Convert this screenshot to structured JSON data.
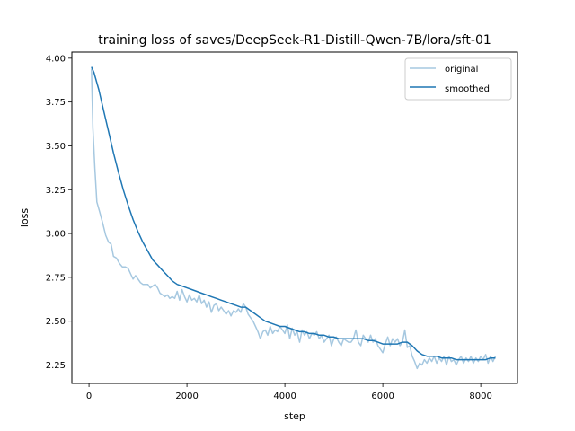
{
  "chart_data": {
    "type": "line",
    "title": "training loss of saves/DeepSeek-R1-Distill-Qwen-7B/lora/sft-01",
    "xlabel": "step",
    "ylabel": "loss",
    "xlim": [
      -350,
      8750
    ],
    "ylim": [
      2.145,
      4.035
    ],
    "xticks": [
      0,
      2000,
      4000,
      6000,
      8000
    ],
    "xtick_labels": [
      "0",
      "2000",
      "4000",
      "6000",
      "8000"
    ],
    "yticks": [
      2.25,
      2.5,
      2.75,
      3.0,
      3.25,
      3.5,
      3.75,
      4.0
    ],
    "ytick_labels": [
      "2.25",
      "2.50",
      "2.75",
      "3.00",
      "3.25",
      "3.50",
      "3.75",
      "4.00"
    ],
    "grid": false,
    "legend_position": "top-right",
    "series": [
      {
        "name": "original",
        "color": "#a6c8e0",
        "points": [
          [
            50,
            3.94
          ],
          [
            80,
            3.6
          ],
          [
            120,
            3.37
          ],
          [
            160,
            3.18
          ],
          [
            220,
            3.12
          ],
          [
            280,
            3.06
          ],
          [
            340,
            2.99
          ],
          [
            400,
            2.95
          ],
          [
            450,
            2.94
          ],
          [
            500,
            2.87
          ],
          [
            560,
            2.86
          ],
          [
            620,
            2.83
          ],
          [
            680,
            2.81
          ],
          [
            740,
            2.81
          ],
          [
            800,
            2.8
          ],
          [
            850,
            2.77
          ],
          [
            900,
            2.74
          ],
          [
            950,
            2.76
          ],
          [
            1000,
            2.74
          ],
          [
            1050,
            2.72
          ],
          [
            1100,
            2.71
          ],
          [
            1150,
            2.71
          ],
          [
            1200,
            2.71
          ],
          [
            1250,
            2.69
          ],
          [
            1300,
            2.7
          ],
          [
            1350,
            2.71
          ],
          [
            1400,
            2.69
          ],
          [
            1450,
            2.66
          ],
          [
            1500,
            2.65
          ],
          [
            1550,
            2.64
          ],
          [
            1600,
            2.65
          ],
          [
            1650,
            2.63
          ],
          [
            1700,
            2.64
          ],
          [
            1750,
            2.63
          ],
          [
            1800,
            2.67
          ],
          [
            1850,
            2.62
          ],
          [
            1900,
            2.68
          ],
          [
            1950,
            2.64
          ],
          [
            2000,
            2.61
          ],
          [
            2050,
            2.65
          ],
          [
            2100,
            2.62
          ],
          [
            2150,
            2.63
          ],
          [
            2200,
            2.61
          ],
          [
            2250,
            2.65
          ],
          [
            2300,
            2.6
          ],
          [
            2350,
            2.62
          ],
          [
            2400,
            2.58
          ],
          [
            2450,
            2.61
          ],
          [
            2500,
            2.55
          ],
          [
            2550,
            2.59
          ],
          [
            2600,
            2.6
          ],
          [
            2650,
            2.56
          ],
          [
            2700,
            2.58
          ],
          [
            2750,
            2.56
          ],
          [
            2800,
            2.54
          ],
          [
            2850,
            2.56
          ],
          [
            2900,
            2.53
          ],
          [
            2950,
            2.56
          ],
          [
            3000,
            2.55
          ],
          [
            3050,
            2.57
          ],
          [
            3100,
            2.55
          ],
          [
            3150,
            2.6
          ],
          [
            3200,
            2.58
          ],
          [
            3250,
            2.54
          ],
          [
            3300,
            2.52
          ],
          [
            3350,
            2.5
          ],
          [
            3400,
            2.47
          ],
          [
            3450,
            2.44
          ],
          [
            3500,
            2.4
          ],
          [
            3550,
            2.44
          ],
          [
            3600,
            2.45
          ],
          [
            3650,
            2.42
          ],
          [
            3700,
            2.47
          ],
          [
            3750,
            2.43
          ],
          [
            3800,
            2.45
          ],
          [
            3850,
            2.44
          ],
          [
            3900,
            2.47
          ],
          [
            3950,
            2.45
          ],
          [
            4000,
            2.43
          ],
          [
            4050,
            2.48
          ],
          [
            4100,
            2.4
          ],
          [
            4150,
            2.46
          ],
          [
            4200,
            2.42
          ],
          [
            4250,
            2.44
          ],
          [
            4300,
            2.38
          ],
          [
            4350,
            2.45
          ],
          [
            4400,
            2.42
          ],
          [
            4450,
            2.44
          ],
          [
            4500,
            2.4
          ],
          [
            4550,
            2.43
          ],
          [
            4600,
            2.42
          ],
          [
            4650,
            2.44
          ],
          [
            4700,
            2.4
          ],
          [
            4750,
            2.42
          ],
          [
            4800,
            2.38
          ],
          [
            4850,
            2.4
          ],
          [
            4900,
            2.42
          ],
          [
            4950,
            2.36
          ],
          [
            5000,
            2.4
          ],
          [
            5050,
            2.41
          ],
          [
            5100,
            2.38
          ],
          [
            5150,
            2.36
          ],
          [
            5200,
            2.4
          ],
          [
            5250,
            2.39
          ],
          [
            5300,
            2.38
          ],
          [
            5350,
            2.38
          ],
          [
            5400,
            2.4
          ],
          [
            5450,
            2.45
          ],
          [
            5500,
            2.38
          ],
          [
            5550,
            2.36
          ],
          [
            5600,
            2.42
          ],
          [
            5650,
            2.4
          ],
          [
            5700,
            2.38
          ],
          [
            5750,
            2.42
          ],
          [
            5800,
            2.38
          ],
          [
            5850,
            2.4
          ],
          [
            5900,
            2.36
          ],
          [
            5950,
            2.34
          ],
          [
            6000,
            2.32
          ],
          [
            6050,
            2.37
          ],
          [
            6100,
            2.41
          ],
          [
            6150,
            2.36
          ],
          [
            6200,
            2.4
          ],
          [
            6250,
            2.38
          ],
          [
            6300,
            2.4
          ],
          [
            6350,
            2.36
          ],
          [
            6400,
            2.38
          ],
          [
            6450,
            2.45
          ],
          [
            6500,
            2.35
          ],
          [
            6550,
            2.36
          ],
          [
            6600,
            2.3
          ],
          [
            6650,
            2.27
          ],
          [
            6700,
            2.23
          ],
          [
            6750,
            2.26
          ],
          [
            6800,
            2.25
          ],
          [
            6850,
            2.28
          ],
          [
            6900,
            2.26
          ],
          [
            6950,
            2.29
          ],
          [
            7000,
            2.27
          ],
          [
            7050,
            2.3
          ],
          [
            7100,
            2.26
          ],
          [
            7150,
            2.29
          ],
          [
            7200,
            2.27
          ],
          [
            7250,
            2.3
          ],
          [
            7300,
            2.25
          ],
          [
            7350,
            2.3
          ],
          [
            7400,
            2.27
          ],
          [
            7450,
            2.28
          ],
          [
            7500,
            2.25
          ],
          [
            7550,
            2.28
          ],
          [
            7600,
            2.3
          ],
          [
            7650,
            2.26
          ],
          [
            7700,
            2.29
          ],
          [
            7750,
            2.27
          ],
          [
            7800,
            2.3
          ],
          [
            7850,
            2.26
          ],
          [
            7900,
            2.29
          ],
          [
            7950,
            2.27
          ],
          [
            8000,
            2.3
          ],
          [
            8050,
            2.28
          ],
          [
            8100,
            2.31
          ],
          [
            8150,
            2.26
          ],
          [
            8200,
            2.3
          ],
          [
            8250,
            2.27
          ],
          [
            8300,
            2.3
          ]
        ]
      },
      {
        "name": "smoothed",
        "color": "#1f77b4",
        "points": [
          [
            50,
            3.95
          ],
          [
            100,
            3.92
          ],
          [
            200,
            3.82
          ],
          [
            300,
            3.7
          ],
          [
            400,
            3.58
          ],
          [
            500,
            3.46
          ],
          [
            600,
            3.35
          ],
          [
            700,
            3.25
          ],
          [
            800,
            3.16
          ],
          [
            900,
            3.08
          ],
          [
            1000,
            3.01
          ],
          [
            1100,
            2.95
          ],
          [
            1200,
            2.9
          ],
          [
            1300,
            2.85
          ],
          [
            1400,
            2.82
          ],
          [
            1500,
            2.79
          ],
          [
            1600,
            2.76
          ],
          [
            1700,
            2.73
          ],
          [
            1800,
            2.71
          ],
          [
            1900,
            2.7
          ],
          [
            2000,
            2.69
          ],
          [
            2100,
            2.68
          ],
          [
            2200,
            2.67
          ],
          [
            2300,
            2.66
          ],
          [
            2400,
            2.65
          ],
          [
            2500,
            2.64
          ],
          [
            2600,
            2.63
          ],
          [
            2700,
            2.62
          ],
          [
            2800,
            2.61
          ],
          [
            2900,
            2.6
          ],
          [
            3000,
            2.59
          ],
          [
            3100,
            2.58
          ],
          [
            3200,
            2.58
          ],
          [
            3300,
            2.56
          ],
          [
            3400,
            2.54
          ],
          [
            3500,
            2.52
          ],
          [
            3600,
            2.5
          ],
          [
            3700,
            2.49
          ],
          [
            3800,
            2.48
          ],
          [
            3900,
            2.47
          ],
          [
            4000,
            2.47
          ],
          [
            4100,
            2.46
          ],
          [
            4200,
            2.45
          ],
          [
            4300,
            2.44
          ],
          [
            4400,
            2.44
          ],
          [
            4500,
            2.43
          ],
          [
            4600,
            2.43
          ],
          [
            4700,
            2.42
          ],
          [
            4800,
            2.42
          ],
          [
            4900,
            2.41
          ],
          [
            5000,
            2.41
          ],
          [
            5100,
            2.4
          ],
          [
            5200,
            2.4
          ],
          [
            5300,
            2.4
          ],
          [
            5400,
            2.4
          ],
          [
            5500,
            2.4
          ],
          [
            5600,
            2.4
          ],
          [
            5700,
            2.39
          ],
          [
            5800,
            2.39
          ],
          [
            5900,
            2.38
          ],
          [
            6000,
            2.37
          ],
          [
            6100,
            2.37
          ],
          [
            6200,
            2.37
          ],
          [
            6300,
            2.37
          ],
          [
            6400,
            2.38
          ],
          [
            6500,
            2.38
          ],
          [
            6600,
            2.36
          ],
          [
            6700,
            2.33
          ],
          [
            6800,
            2.31
          ],
          [
            6900,
            2.3
          ],
          [
            7000,
            2.3
          ],
          [
            7100,
            2.3
          ],
          [
            7200,
            2.29
          ],
          [
            7300,
            2.29
          ],
          [
            7400,
            2.29
          ],
          [
            7500,
            2.28
          ],
          [
            7600,
            2.28
          ],
          [
            7700,
            2.28
          ],
          [
            7800,
            2.28
          ],
          [
            7900,
            2.28
          ],
          [
            8000,
            2.28
          ],
          [
            8100,
            2.28
          ],
          [
            8200,
            2.29
          ],
          [
            8300,
            2.29
          ]
        ]
      }
    ]
  }
}
